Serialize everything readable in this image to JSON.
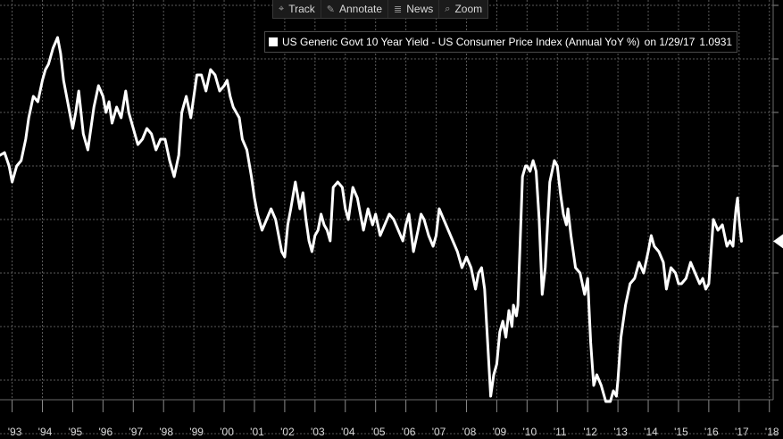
{
  "toolbar": {
    "items": [
      {
        "label": "Track",
        "icon": "crosshair-icon"
      },
      {
        "label": "Annotate",
        "icon": "pencil-icon"
      },
      {
        "label": "News",
        "icon": "news-icon"
      },
      {
        "label": "Zoom",
        "icon": "magnifier-icon"
      }
    ]
  },
  "legend": {
    "series_label": "US Generic Govt 10 Year Yield - US Consumer Price Index (Annual YoY %)",
    "date_text": "on 1/29/17",
    "value_text": "1.0931",
    "color": "#ffffff"
  },
  "chart_data": {
    "type": "line",
    "title": "",
    "xlabel": "",
    "ylabel": "",
    "grid": true,
    "background": "#000000",
    "line_color": "#ffffff",
    "grid_color": "#5a5a5a",
    "x_ticks": [
      "'93",
      "'94",
      "'95",
      "'96",
      "'97",
      "'98",
      "'99",
      "'00",
      "'01",
      "'02",
      "'03",
      "'04",
      "'05",
      "'06",
      "'07",
      "'08",
      "'09",
      "'10",
      "'11",
      "'12",
      "'13",
      "'14",
      "'15",
      "'16",
      "'17",
      "'18"
    ],
    "x_tick_values": [
      1993,
      1994,
      1995,
      1996,
      1997,
      1998,
      1999,
      2000,
      2001,
      2002,
      2003,
      2004,
      2005,
      2006,
      2007,
      2008,
      2009,
      2010,
      2011,
      2012,
      2013,
      2014,
      2015,
      2016,
      2017,
      2018
    ],
    "xlim": [
      1992.6,
      2018.45
    ],
    "ylim": [
      -2.6,
      5.6
    ],
    "y_gridlines": [
      -2.5,
      -1.5,
      -0.5,
      0.5,
      1.5,
      2.5,
      3.5,
      4.5,
      5.5
    ],
    "last_value": 1.0931,
    "series": [
      {
        "name": "US Generic Govt 10 Year Yield - US Consumer Price Index (Annual YoY %)",
        "x": [
          1992.6,
          1992.75,
          1992.9,
          1993.0,
          1993.15,
          1993.3,
          1993.45,
          1993.55,
          1993.7,
          1993.85,
          1994.0,
          1994.1,
          1994.2,
          1994.35,
          1994.5,
          1994.6,
          1994.7,
          1994.8,
          1994.9,
          1995.0,
          1995.1,
          1995.2,
          1995.35,
          1995.5,
          1995.6,
          1995.7,
          1995.85,
          1996.0,
          1996.1,
          1996.2,
          1996.3,
          1996.45,
          1996.6,
          1996.75,
          1996.85,
          1997.0,
          1997.15,
          1997.3,
          1997.45,
          1997.6,
          1997.75,
          1997.9,
          1998.05,
          1998.2,
          1998.35,
          1998.5,
          1998.6,
          1998.75,
          1998.9,
          1999.0,
          1999.1,
          1999.25,
          1999.4,
          1999.55,
          1999.7,
          1999.85,
          2000.0,
          2000.1,
          2000.2,
          2000.3,
          2000.5,
          2000.6,
          2000.75,
          2000.9,
          2001.0,
          2001.1,
          2001.25,
          2001.4,
          2001.55,
          2001.7,
          2001.8,
          2001.9,
          2002.0,
          2002.1,
          2002.2,
          2002.35,
          2002.5,
          2002.6,
          2002.7,
          2002.8,
          2002.9,
          2003.0,
          2003.1,
          2003.2,
          2003.3,
          2003.4,
          2003.5,
          2003.6,
          2003.75,
          2003.9,
          2004.0,
          2004.1,
          2004.25,
          2004.4,
          2004.5,
          2004.6,
          2004.75,
          2004.9,
          2005.0,
          2005.15,
          2005.3,
          2005.45,
          2005.6,
          2005.75,
          2005.9,
          2006.0,
          2006.1,
          2006.25,
          2006.4,
          2006.5,
          2006.6,
          2006.75,
          2006.9,
          2007.0,
          2007.1,
          2007.25,
          2007.4,
          2007.55,
          2007.7,
          2007.85,
          2008.0,
          2008.15,
          2008.3,
          2008.4,
          2008.5,
          2008.6,
          2008.7,
          2008.8,
          2008.9,
          2009.0,
          2009.1,
          2009.2,
          2009.3,
          2009.4,
          2009.5,
          2009.55,
          2009.65,
          2009.7,
          2009.85,
          2009.95,
          2010.0,
          2010.1,
          2010.2,
          2010.3,
          2010.4,
          2010.5,
          2010.6,
          2010.75,
          2010.9,
          2011.0,
          2011.1,
          2011.2,
          2011.3,
          2011.35,
          2011.45,
          2011.6,
          2011.75,
          2011.9,
          2012.0,
          2012.1,
          2012.2,
          2012.3,
          2012.45,
          2012.6,
          2012.75,
          2012.85,
          2012.95,
          2013.0,
          2013.1,
          2013.25,
          2013.4,
          2013.55,
          2013.7,
          2013.85,
          2014.0,
          2014.1,
          2014.2,
          2014.35,
          2014.5,
          2014.6,
          2014.75,
          2014.9,
          2015.0,
          2015.1,
          2015.25,
          2015.4,
          2015.55,
          2015.7,
          2015.8,
          2015.9,
          2016.0,
          2016.15,
          2016.3,
          2016.45,
          2016.6,
          2016.7,
          2016.8,
          2016.85,
          2016.9,
          2016.95,
          2017.0,
          2017.08
        ],
        "values": [
          2.7,
          2.75,
          2.5,
          2.2,
          2.5,
          2.6,
          3.0,
          3.4,
          3.8,
          3.7,
          4.1,
          4.3,
          4.4,
          4.7,
          4.9,
          4.6,
          4.1,
          3.8,
          3.5,
          3.2,
          3.5,
          3.9,
          3.1,
          2.8,
          3.2,
          3.6,
          4.0,
          3.8,
          3.5,
          3.7,
          3.3,
          3.6,
          3.4,
          3.9,
          3.5,
          3.2,
          2.9,
          3.0,
          3.2,
          3.1,
          2.8,
          3.0,
          3.0,
          2.6,
          2.3,
          2.7,
          3.5,
          3.8,
          3.4,
          3.8,
          4.2,
          4.2,
          3.9,
          4.3,
          4.2,
          3.9,
          4.0,
          4.1,
          3.8,
          3.6,
          3.4,
          3.0,
          2.8,
          2.3,
          1.9,
          1.6,
          1.3,
          1.5,
          1.7,
          1.5,
          1.2,
          0.9,
          0.8,
          1.4,
          1.7,
          2.2,
          1.7,
          2.0,
          1.5,
          1.1,
          0.9,
          1.2,
          1.3,
          1.6,
          1.4,
          1.3,
          1.1,
          2.1,
          2.2,
          2.1,
          1.7,
          1.5,
          2.1,
          1.9,
          1.6,
          1.3,
          1.7,
          1.4,
          1.6,
          1.2,
          1.4,
          1.6,
          1.5,
          1.3,
          1.1,
          1.4,
          1.6,
          0.9,
          1.3,
          1.6,
          1.5,
          1.2,
          1.0,
          1.2,
          1.7,
          1.5,
          1.3,
          1.1,
          0.9,
          0.6,
          0.8,
          0.6,
          0.2,
          0.5,
          0.6,
          0.2,
          -0.8,
          -1.8,
          -1.4,
          -1.2,
          -0.6,
          -0.4,
          -0.7,
          -0.2,
          -0.5,
          -0.1,
          -0.3,
          -0.1,
          2.3,
          2.5,
          2.5,
          2.4,
          2.6,
          2.4,
          1.5,
          0.1,
          0.6,
          2.2,
          2.6,
          2.5,
          2.0,
          1.6,
          1.4,
          1.7,
          1.2,
          0.6,
          0.5,
          0.1,
          0.4,
          -0.8,
          -1.6,
          -1.4,
          -1.6,
          -1.9,
          -1.9,
          -1.7,
          -1.8,
          -1.5,
          -0.7,
          -0.1,
          0.3,
          0.4,
          0.7,
          0.5,
          0.9,
          1.2,
          1.0,
          0.9,
          0.7,
          0.2,
          0.6,
          0.5,
          0.3,
          0.3,
          0.4,
          0.7,
          0.5,
          0.3,
          0.4,
          0.2,
          0.3,
          1.5,
          1.3,
          1.4,
          1.0,
          1.1,
          1.0,
          1.4,
          1.7,
          1.9,
          1.5,
          1.0931
        ]
      }
    ]
  }
}
